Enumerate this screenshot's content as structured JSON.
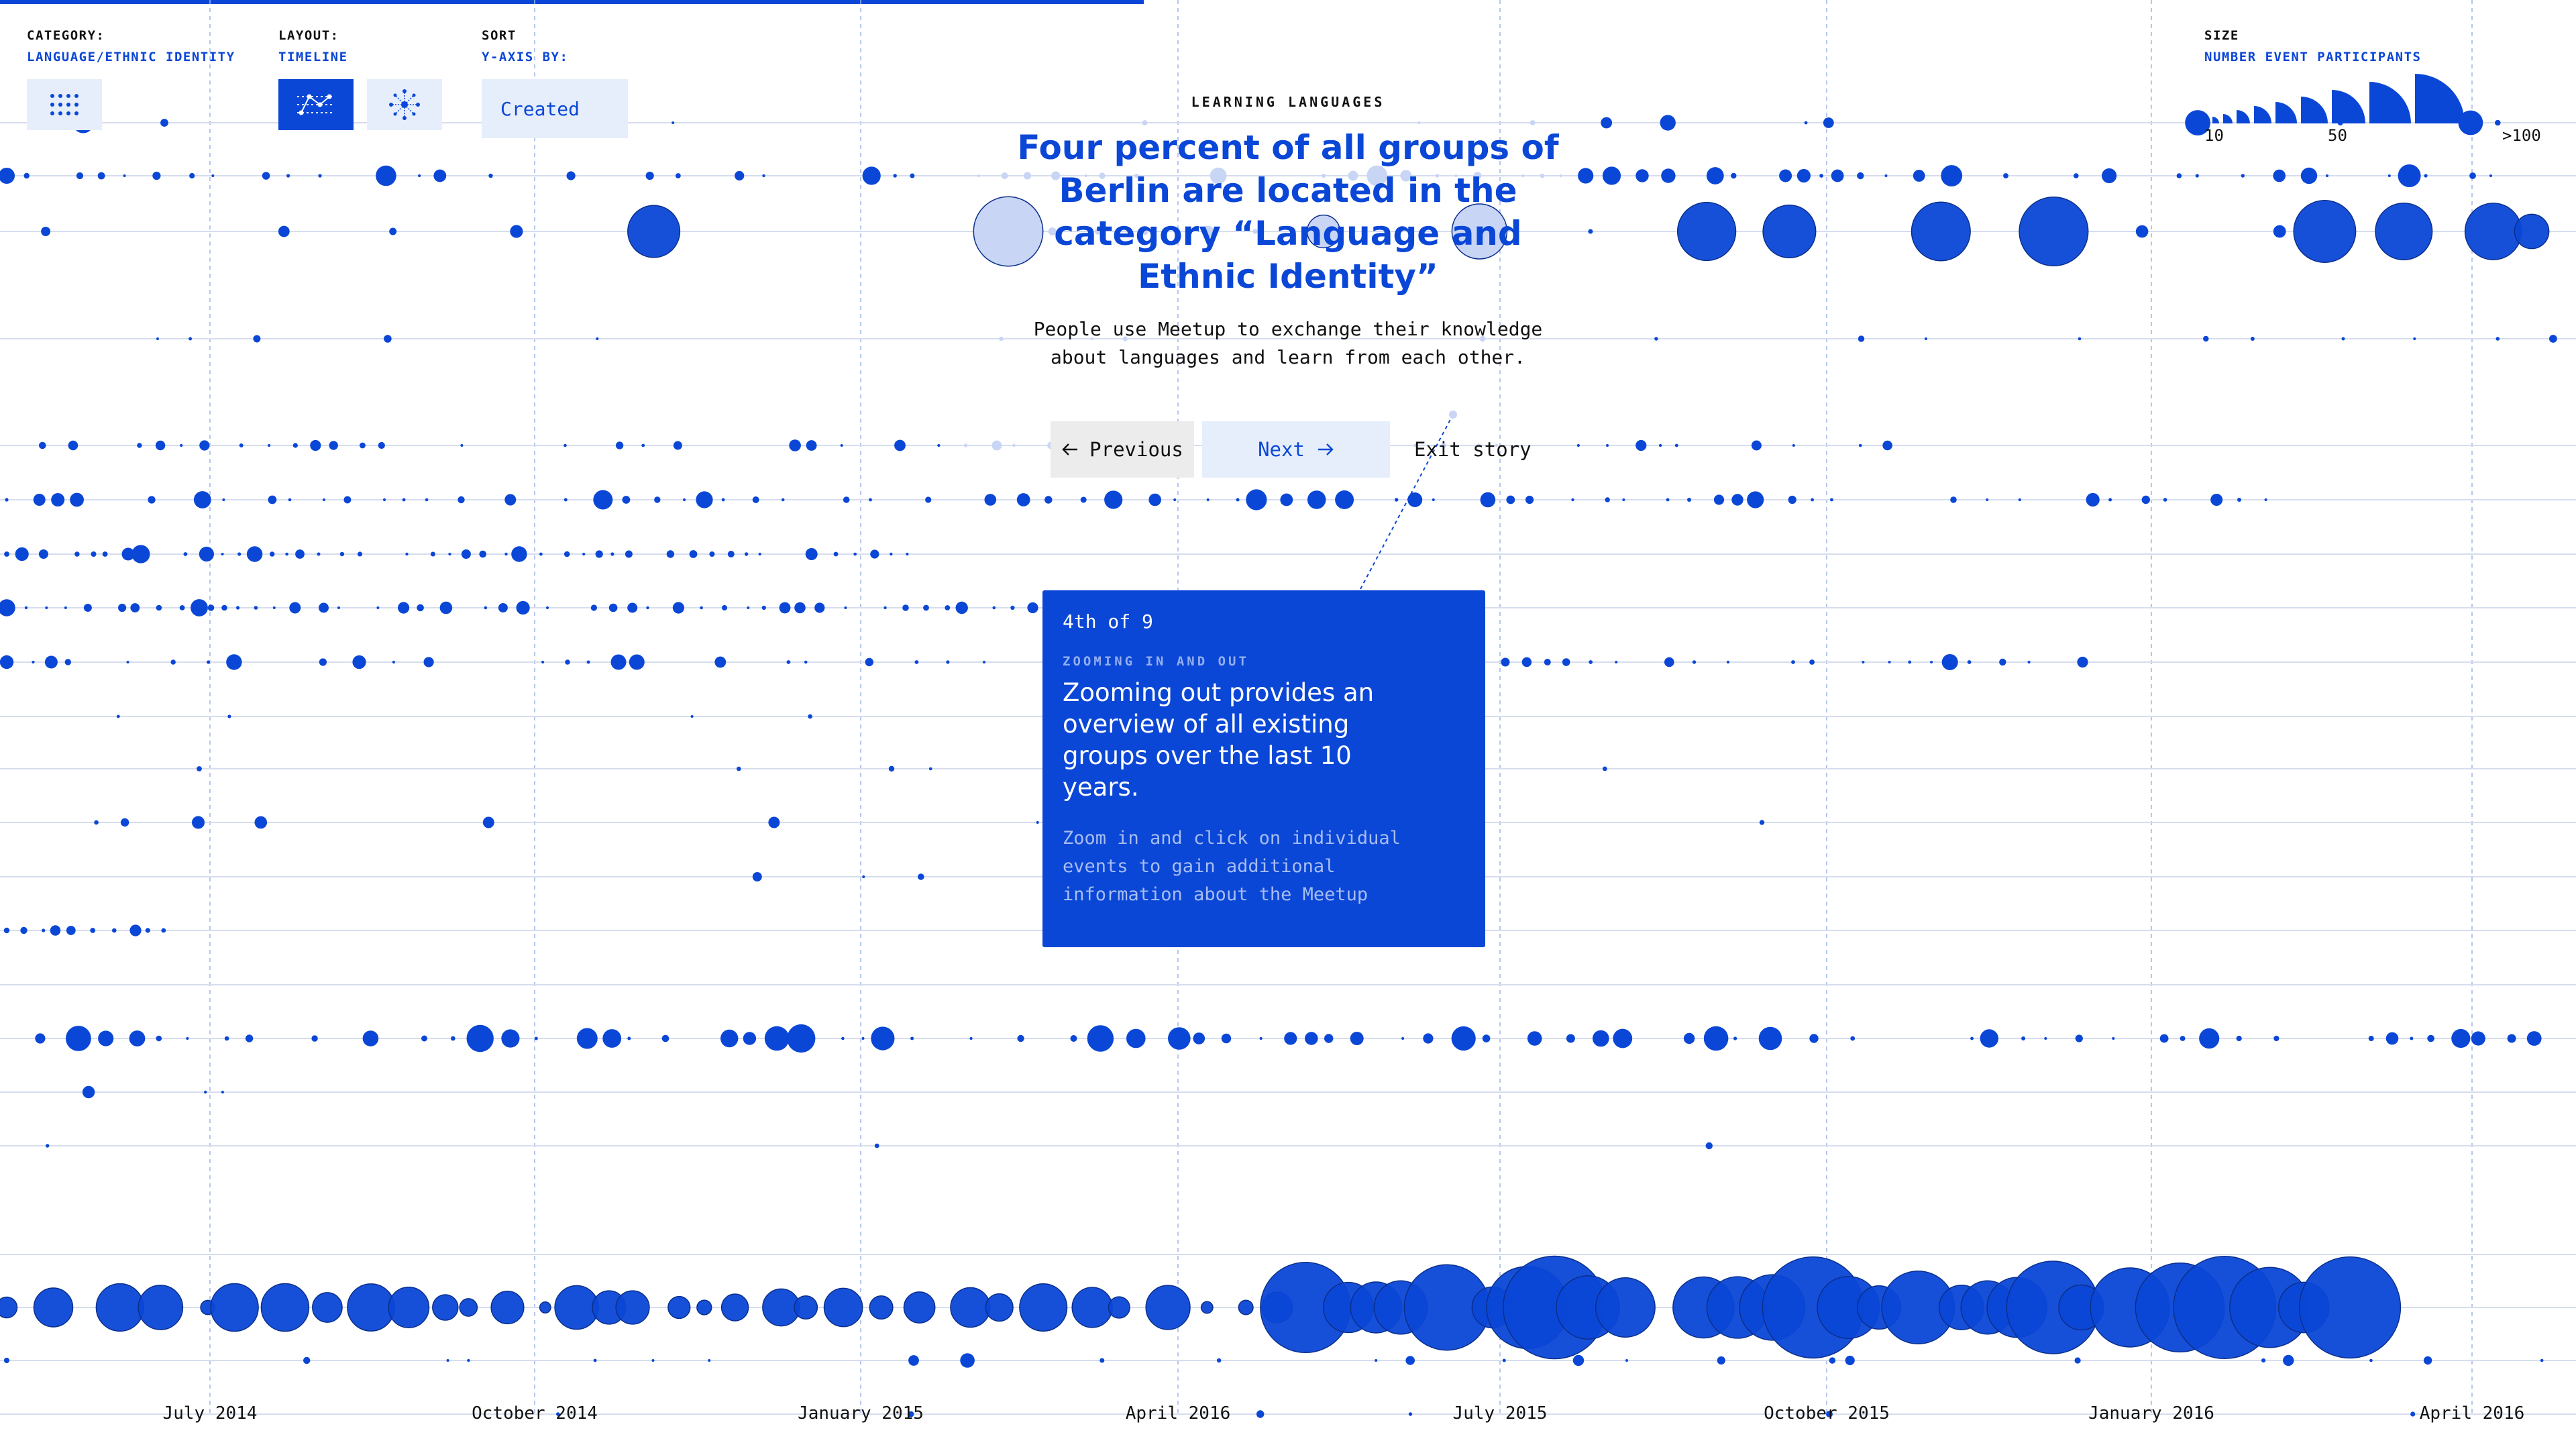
{
  "progress": {
    "fraction": 0.444
  },
  "controls": {
    "category": {
      "label": "CATEGORY:",
      "value": "LANGUAGE/ETHNIC IDENTITY",
      "icon": "grid-dots-icon"
    },
    "layout": {
      "label": "LAYOUT:",
      "value": "TIMELINE",
      "options": [
        "timeline-icon",
        "cluster-icon"
      ],
      "selected": "timeline-icon"
    },
    "sort": {
      "label": "SORT",
      "value": "Y-AXIS BY:",
      "selected": "Created"
    }
  },
  "size_legend": {
    "label": "SIZE",
    "value": "NUMBER EVENT PARTICIPANTS",
    "min_label": "10",
    "mid_label": "50",
    "max_label": ">100"
  },
  "story": {
    "kicker": "LEARNING LANGUAGES",
    "title": "Four percent of all groups of Berlin are located in the category “Language and Ethnic Identity”",
    "body": "People use Meetup to exchange their knowledge about languages and learn from each other.",
    "prev_label": "Previous",
    "next_label": "Next",
    "exit_label": "Exit story"
  },
  "tooltip": {
    "step": "4th of 9",
    "kicker": "ZOOMING IN AND OUT",
    "heading": "Zooming out provides an overview of all existing groups over the last 10 years.",
    "body": "Zoom in and click on individual events to gain additional information about the Meetup"
  },
  "colors": {
    "accent": "#0b47d6",
    "faded": "#c9d5f5",
    "light_bg": "#e6eefc",
    "grid": "#d6ddee"
  },
  "timeline": {
    "x_ticks": [
      "July 2014",
      "October 2014",
      "January 2015",
      "April 2016",
      "July 2015",
      "October 2015",
      "January 2016",
      "April 2016"
    ]
  }
}
